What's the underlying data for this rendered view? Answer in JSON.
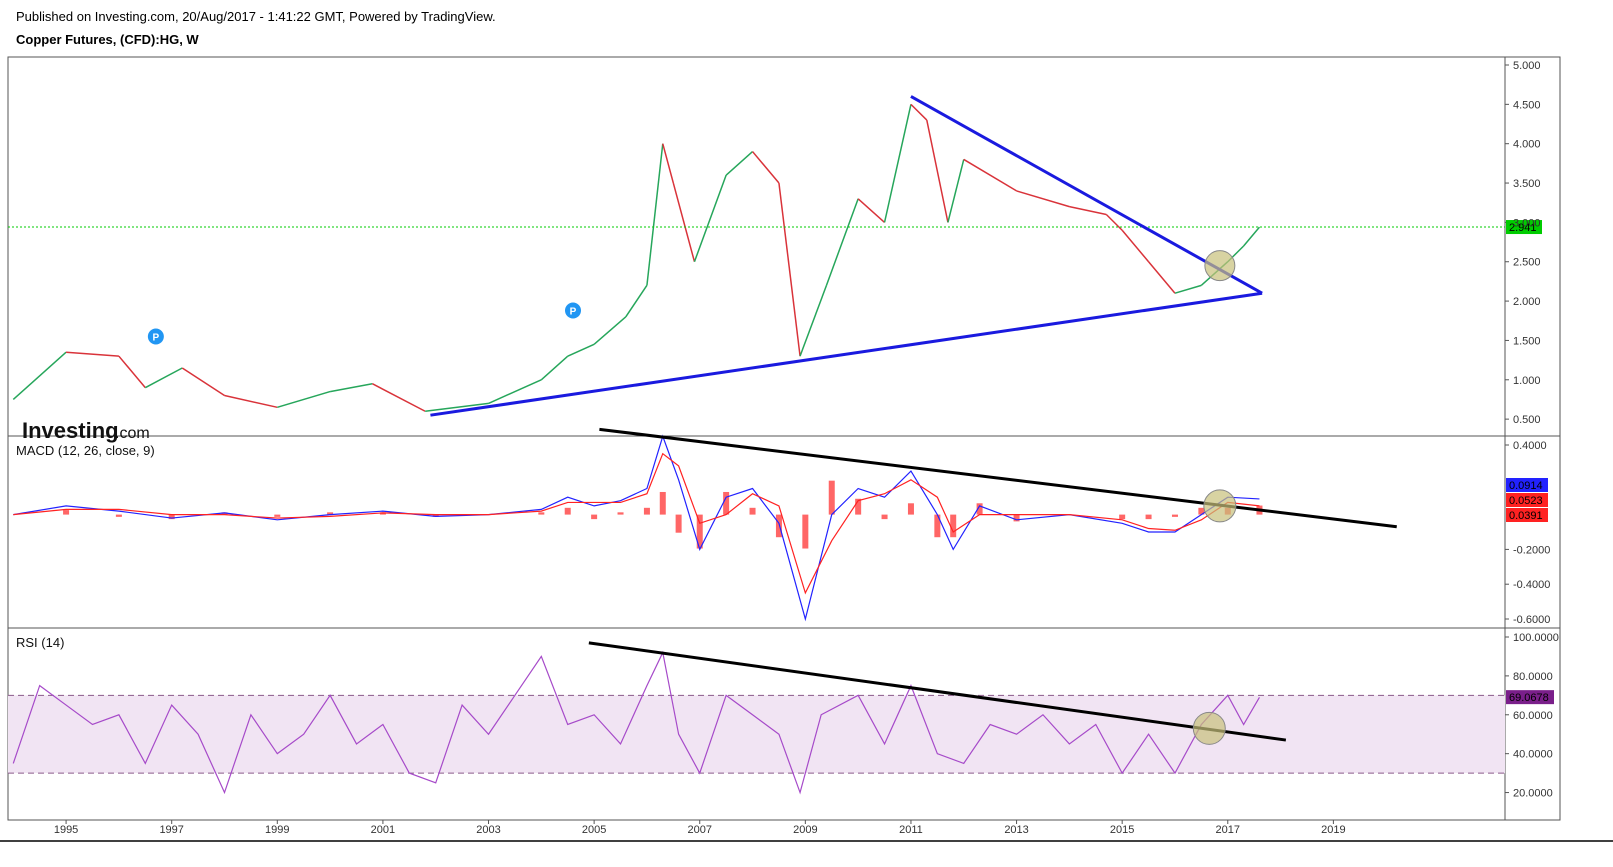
{
  "header": {
    "published": "Published on Investing.com, 20/Aug/2017 - 1:41:22 GMT, Powered by TradingView.",
    "title": "Copper Futures, (CFD):HG, W"
  },
  "logo": {
    "bold": "Investing",
    "suffix": ".com"
  },
  "colors": {
    "up": "#26a65b",
    "down": "#d9333a",
    "trendline_price": "#1a1adf",
    "trendline_indicator": "#000000",
    "macd": "#2222ff",
    "signal": "#ff2222",
    "histogram": "#ff6666",
    "rsi": "#a64ac9",
    "rsi_band": "#f1e4f3",
    "current_line": "#00cc00",
    "highlight_circle": "#c8c07a",
    "marker": "#2196f3"
  },
  "chart_data": [
    {
      "type": "line",
      "name": "price",
      "title": "Copper Futures, (CFD):HG, W",
      "ylim": [
        0.4,
        5.0
      ],
      "yticks": [
        "5.000",
        "4.500",
        "4.000",
        "3.500",
        "3.000",
        "2.500",
        "2.000",
        "1.500",
        "1.000",
        "0.500"
      ],
      "last_value": "2.941",
      "x": [
        1994.0,
        1995.0,
        1996.0,
        1996.5,
        1997.2,
        1998.0,
        1999.0,
        2000.0,
        2000.8,
        2001.8,
        2003.0,
        2004.0,
        2004.5,
        2005.0,
        2005.6,
        2006.0,
        2006.3,
        2006.5,
        2006.9,
        2007.5,
        2008.0,
        2008.5,
        2008.9,
        2009.4,
        2010.0,
        2010.5,
        2011.0,
        2011.3,
        2011.7,
        2012.0,
        2013.0,
        2014.0,
        2014.7,
        2015.0,
        2015.5,
        2016.0,
        2016.5,
        2017.0,
        2017.3,
        2017.6
      ],
      "values": [
        0.75,
        1.35,
        1.3,
        0.9,
        1.15,
        0.8,
        0.65,
        0.85,
        0.95,
        0.6,
        0.7,
        1.0,
        1.3,
        1.45,
        1.8,
        2.2,
        4.0,
        3.5,
        2.5,
        3.6,
        3.9,
        3.5,
        1.3,
        2.2,
        3.3,
        3.0,
        4.5,
        4.3,
        3.0,
        3.8,
        3.4,
        3.2,
        3.1,
        2.9,
        2.5,
        2.1,
        2.2,
        2.5,
        2.7,
        2.94
      ],
      "trendlines": [
        {
          "from": [
            2001.9,
            0.55
          ],
          "to": [
            2017.65,
            2.1
          ]
        },
        {
          "from": [
            2011.0,
            4.6
          ],
          "to": [
            2017.65,
            2.1
          ]
        }
      ],
      "markers": [
        {
          "x": 1996.7,
          "y": 1.55,
          "label": "P"
        },
        {
          "x": 2004.6,
          "y": 1.88,
          "label": "P"
        }
      ],
      "highlight": {
        "x": 2016.85,
        "y": 2.45
      }
    },
    {
      "type": "line",
      "name": "MACD",
      "title": "MACD (12, 26, close, 9)",
      "ylim": [
        -0.6,
        0.4
      ],
      "yticks": [
        "0.4000",
        "-0.2000",
        "-0.4000",
        "-0.6000"
      ],
      "last_values": [
        "0.0914",
        "0.0523",
        "0.0391"
      ],
      "x": [
        1994.0,
        1995.0,
        1996.0,
        1997.0,
        1998.0,
        1999.0,
        2000.0,
        2001.0,
        2002.0,
        2003.0,
        2004.0,
        2004.5,
        2005.0,
        2005.5,
        2006.0,
        2006.3,
        2006.6,
        2007.0,
        2007.5,
        2008.0,
        2008.5,
        2009.0,
        2009.5,
        2010.0,
        2010.5,
        2011.0,
        2011.5,
        2011.8,
        2012.3,
        2013.0,
        2014.0,
        2015.0,
        2015.5,
        2016.0,
        2016.5,
        2017.0,
        2017.6
      ],
      "values": [
        0.0,
        0.05,
        0.02,
        -0.02,
        0.01,
        -0.03,
        0.0,
        0.02,
        -0.01,
        0.0,
        0.03,
        0.1,
        0.05,
        0.08,
        0.15,
        0.45,
        0.2,
        -0.2,
        0.1,
        0.15,
        -0.05,
        -0.6,
        0.0,
        0.15,
        0.1,
        0.25,
        0.0,
        -0.2,
        0.05,
        -0.03,
        0.0,
        -0.05,
        -0.1,
        -0.1,
        0.0,
        0.1,
        0.09
      ],
      "signal": [
        0.0,
        0.03,
        0.03,
        0.0,
        0.0,
        -0.02,
        -0.01,
        0.01,
        0.0,
        0.0,
        0.02,
        0.07,
        0.07,
        0.07,
        0.12,
        0.35,
        0.28,
        -0.05,
        0.0,
        0.12,
        0.05,
        -0.45,
        -0.15,
        0.08,
        0.12,
        0.2,
        0.1,
        -0.1,
        0.0,
        0.0,
        0.0,
        -0.03,
        -0.08,
        -0.09,
        -0.03,
        0.07,
        0.05
      ],
      "trendline": {
        "from": [
          2005.1,
          0.49
        ],
        "to": [
          2020.2,
          -0.07
        ]
      },
      "highlight": {
        "x": 2016.85,
        "y": 0.05
      }
    },
    {
      "type": "line",
      "name": "RSI",
      "title": "RSI (14)",
      "ylim": [
        10,
        100
      ],
      "yticks": [
        "100.0000",
        "80.0000",
        "60.0000",
        "40.0000",
        "20.0000"
      ],
      "bands": [
        30,
        70
      ],
      "last_value": "69.0678",
      "x": [
        1994.0,
        1994.5,
        1995.0,
        1995.5,
        1996.0,
        1996.5,
        1997.0,
        1997.5,
        1998.0,
        1998.5,
        1999.0,
        1999.5,
        2000.0,
        2000.5,
        2001.0,
        2001.5,
        2002.0,
        2002.5,
        2003.0,
        2003.5,
        2004.0,
        2004.5,
        2005.0,
        2005.5,
        2006.0,
        2006.3,
        2006.6,
        2007.0,
        2007.5,
        2008.0,
        2008.5,
        2008.9,
        2009.3,
        2010.0,
        2010.5,
        2011.0,
        2011.5,
        2012.0,
        2012.5,
        2013.0,
        2013.5,
        2014.0,
        2014.5,
        2015.0,
        2015.5,
        2016.0,
        2016.5,
        2017.0,
        2017.3,
        2017.6
      ],
      "values": [
        35,
        75,
        65,
        55,
        60,
        35,
        65,
        50,
        20,
        60,
        40,
        50,
        70,
        45,
        55,
        30,
        25,
        65,
        50,
        70,
        90,
        55,
        60,
        45,
        75,
        92,
        50,
        30,
        70,
        60,
        50,
        20,
        60,
        70,
        45,
        75,
        40,
        35,
        55,
        50,
        60,
        45,
        55,
        30,
        50,
        30,
        55,
        70,
        55,
        69
      ],
      "trendline": {
        "from": [
          2004.9,
          97
        ],
        "to": [
          2018.1,
          47
        ]
      },
      "highlight": {
        "x": 2016.65,
        "y": 53
      }
    }
  ],
  "x_axis": {
    "ticks": [
      "1995",
      "1997",
      "1999",
      "2001",
      "2003",
      "2005",
      "2007",
      "2009",
      "2011",
      "2013",
      "2015",
      "2017",
      "2019"
    ]
  }
}
